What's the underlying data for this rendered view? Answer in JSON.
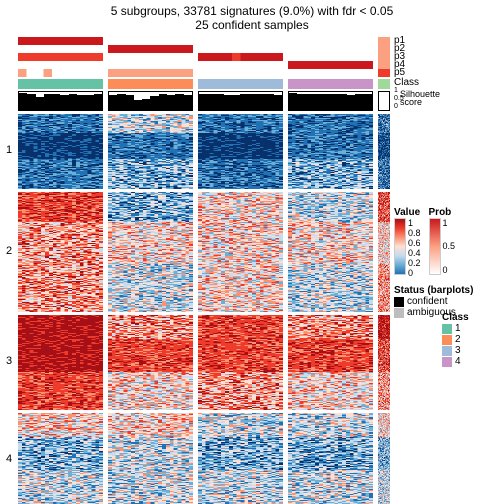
{
  "title_line1": "5 subgroups, 33781 signatures (9.0%) with fdr < 0.05",
  "title_line2": "25 confident samples",
  "n_groups": 4,
  "group_widths": [
    85,
    85,
    85,
    85
  ],
  "side_width": 12,
  "p_rows": [
    "p1",
    "p2",
    "p3",
    "p4",
    "p5"
  ],
  "p_colors": {
    "low": "#ffffff",
    "mid": "#fca082",
    "high": "#ef3b2c",
    "max": "#cb181d"
  },
  "p_pattern": [
    [
      0.95,
      0.02,
      0.02,
      0.02
    ],
    [
      0.02,
      0.92,
      0.02,
      0.02
    ],
    [
      0.6,
      0.1,
      0.9,
      0.05
    ],
    [
      0.02,
      0.02,
      0.05,
      0.92
    ],
    [
      0.15,
      0.3,
      0.1,
      0.05
    ]
  ],
  "p_side": [
    0.3,
    0.3,
    0.3,
    0.3,
    0.6
  ],
  "class_colors": [
    "#66c2a4",
    "#fc8d59",
    "#9ebcda",
    "#c994c7"
  ],
  "class_side_color": "#a1d99b",
  "class_label": "Class",
  "sil_label": "Silhouette",
  "sil_sublabel": "score",
  "sil_ticks": [
    "1",
    "0.5",
    "0"
  ],
  "sil_heights": [
    [
      0.92,
      0.9,
      0.7,
      0.88,
      0.85,
      0.8,
      0.86,
      0.84,
      0.82,
      0.88
    ],
    [
      0.8,
      0.86,
      0.82,
      0.55,
      0.6,
      0.78,
      0.85,
      0.82,
      0.86,
      0.8
    ],
    [
      0.9,
      0.88,
      0.86,
      0.84,
      0.82,
      0.85,
      0.88,
      0.9,
      0.86,
      0.84
    ],
    [
      0.92,
      0.9,
      0.88,
      0.86,
      0.9,
      0.88,
      0.86,
      0.84,
      0.9,
      0.88
    ]
  ],
  "block_labels": [
    "1",
    "2",
    "3",
    "4"
  ],
  "block_heights": [
    75,
    120,
    95,
    95
  ],
  "heatmap_colors": {
    "c1": "#08306b",
    "c2": "#2171b5",
    "c3": "#6baed6",
    "c4": "#c6dbef",
    "c5": "#fee0d2",
    "c6": "#fc9272",
    "c7": "#ef3b2c",
    "c8": "#a50f15"
  },
  "block_profiles": [
    {
      "main": [
        [
          2,
          4,
          2,
          2
        ],
        [
          1,
          2,
          1,
          2
        ],
        [
          2,
          3,
          2,
          3
        ]
      ],
      "phase": [
        "blue_striped",
        "deep_blue",
        "blue_striped"
      ],
      "side_mix": [
        2,
        1,
        2
      ]
    },
    {
      "main": [
        [
          7,
          3,
          5,
          4
        ],
        [
          6,
          5,
          5,
          5
        ],
        [
          6,
          4,
          5,
          4
        ]
      ],
      "phase": [
        "red_white",
        "mixed",
        "mixed"
      ],
      "side_mix": [
        7,
        5,
        6
      ]
    },
    {
      "main": [
        [
          8,
          6,
          7,
          6
        ],
        [
          8,
          7,
          7,
          7
        ],
        [
          7,
          5,
          6,
          5
        ]
      ],
      "phase": [
        "deep_red",
        "red",
        "red_white"
      ],
      "side_mix": [
        8,
        7,
        6
      ]
    },
    {
      "main": [
        [
          5,
          5,
          4,
          4
        ],
        [
          3,
          4,
          3,
          3
        ],
        [
          4,
          4,
          4,
          4
        ]
      ],
      "phase": [
        "white_blue",
        "blue_light",
        "white_blue"
      ],
      "side_mix": [
        5,
        3,
        4
      ]
    }
  ],
  "legends": {
    "value": {
      "title": "Value",
      "ticks": [
        "1",
        "0.8",
        "0.6",
        "0.4",
        "0.2",
        "0"
      ],
      "gradient": [
        "#a50f15",
        "#ef3b2c",
        "#fc9272",
        "#fee0d2",
        "#c6dbef",
        "#6baed6",
        "#2171b5"
      ]
    },
    "prob": {
      "title": "Prob",
      "ticks": [
        "1",
        "0.5",
        "0"
      ],
      "gradient": [
        "#cb181d",
        "#fca082",
        "#ffffff"
      ]
    },
    "status": {
      "title": "Status (barplots)",
      "items": [
        {
          "label": "confident",
          "color": "#000000"
        },
        {
          "label": "ambiguous",
          "color": "#bdbdbd"
        }
      ]
    },
    "class": {
      "title": "Class",
      "items": [
        {
          "label": "1",
          "color": "#66c2a4"
        },
        {
          "label": "2",
          "color": "#fc8d59"
        },
        {
          "label": "3",
          "color": "#9ebcda"
        },
        {
          "label": "4",
          "color": "#c994c7"
        }
      ]
    }
  }
}
